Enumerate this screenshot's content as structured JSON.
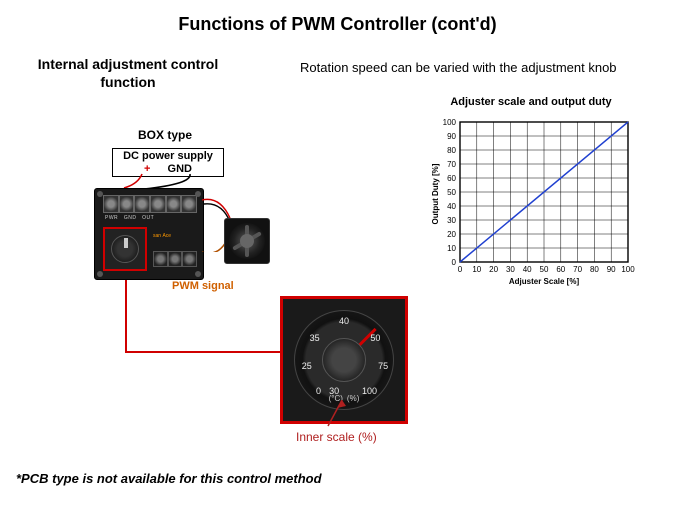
{
  "title": "Functions of PWM Controller (cont'd)",
  "left_heading_l1": "Internal adjustment control",
  "left_heading_l2": "function",
  "right_desc": "Rotation speed can be varied with the adjustment knob",
  "box_type": "BOX type",
  "dc_supply": "DC power supply",
  "dc_plus": "+",
  "dc_gnd": "GND",
  "pwm_signal": "PWM signal",
  "inner_scale": "Inner scale (%)",
  "footnote": "*PCB type is not available for this control method",
  "dial": {
    "numbers": [
      "0",
      "30",
      "35",
      "25",
      "40",
      "50",
      "75",
      "100"
    ],
    "unit_c": "(°C)",
    "unit_pct": "(%)",
    "pointer_angle_deg": 225,
    "outline_color": "#d00000"
  },
  "connector_line_color": "#d00000",
  "wires": {
    "plus_color": "#d00000",
    "gnd_color": "#000000",
    "pwm_color": "#b05000"
  },
  "chart": {
    "type": "line",
    "title": "Adjuster scale and output duty",
    "xlabel": "Adjuster Scale [%]",
    "ylabel": "Output Duty [%]",
    "xlim": [
      0,
      100
    ],
    "ylim": [
      0,
      100
    ],
    "xtick_step": 10,
    "ytick_step": 10,
    "line_color": "#2040d0",
    "grid_color": "#000000",
    "background_color": "#ffffff",
    "points": [
      [
        0,
        0
      ],
      [
        100,
        100
      ]
    ],
    "title_fontsize": 11,
    "label_fontsize": 8,
    "tick_fontsize": 8
  }
}
